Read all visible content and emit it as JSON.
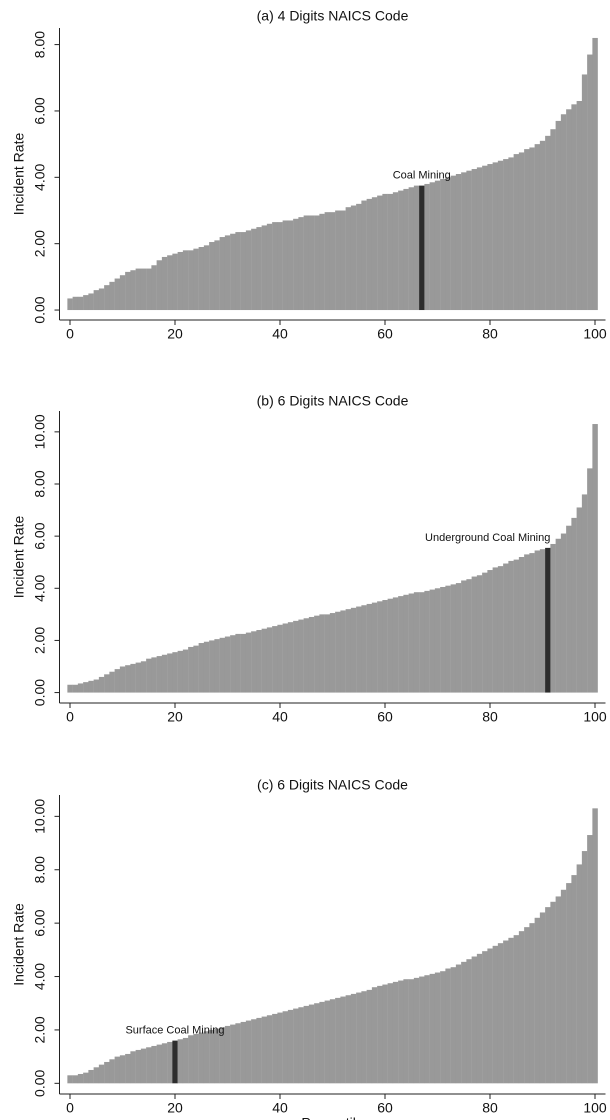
{
  "chart_data": [
    {
      "type": "bar",
      "title": "(a) 4 Digits NAICS Code",
      "ylabel": "Incident Rate",
      "color": "#999999",
      "highlight": {
        "label": "Coal Mining",
        "x": 67,
        "color": "#2d2d2d"
      },
      "x": [
        0,
        1,
        2,
        3,
        4,
        5,
        6,
        7,
        8,
        9,
        10,
        11,
        12,
        13,
        14,
        15,
        16,
        17,
        18,
        19,
        20,
        21,
        22,
        23,
        24,
        25,
        26,
        27,
        28,
        29,
        30,
        31,
        32,
        33,
        34,
        35,
        36,
        37,
        38,
        39,
        40,
        41,
        42,
        43,
        44,
        45,
        46,
        47,
        48,
        49,
        50,
        51,
        52,
        53,
        54,
        55,
        56,
        57,
        58,
        59,
        60,
        61,
        62,
        63,
        64,
        65,
        66,
        67,
        68,
        69,
        70,
        71,
        72,
        73,
        74,
        75,
        76,
        77,
        78,
        79,
        80,
        81,
        82,
        83,
        84,
        85,
        86,
        87,
        88,
        89,
        90,
        91,
        92,
        93,
        94,
        95,
        96,
        97,
        98,
        99,
        100
      ],
      "values": [
        0.35,
        0.4,
        0.4,
        0.45,
        0.5,
        0.6,
        0.65,
        0.75,
        0.85,
        0.95,
        1.05,
        1.15,
        1.2,
        1.25,
        1.25,
        1.25,
        1.35,
        1.5,
        1.6,
        1.65,
        1.7,
        1.75,
        1.8,
        1.8,
        1.85,
        1.9,
        1.95,
        2.05,
        2.1,
        2.2,
        2.25,
        2.3,
        2.35,
        2.35,
        2.4,
        2.45,
        2.5,
        2.55,
        2.6,
        2.65,
        2.65,
        2.7,
        2.7,
        2.75,
        2.8,
        2.85,
        2.85,
        2.85,
        2.9,
        2.95,
        2.95,
        3.0,
        3.0,
        3.1,
        3.15,
        3.2,
        3.3,
        3.35,
        3.4,
        3.45,
        3.5,
        3.5,
        3.55,
        3.6,
        3.65,
        3.7,
        3.75,
        3.75,
        3.8,
        3.85,
        3.9,
        3.95,
        4.0,
        4.05,
        4.1,
        4.15,
        4.2,
        4.25,
        4.3,
        4.35,
        4.4,
        4.45,
        4.5,
        4.55,
        4.6,
        4.7,
        4.75,
        4.85,
        4.9,
        5.0,
        5.1,
        5.25,
        5.45,
        5.7,
        5.9,
        6.05,
        6.2,
        6.3,
        7.1,
        7.7,
        8.2
      ],
      "xlim": [
        -2,
        102
      ],
      "xticks": [
        0,
        20,
        40,
        60,
        80,
        100
      ],
      "ylim": [
        -0.3,
        8.5
      ],
      "yticks": [
        {
          "value": 0,
          "label": "0.00"
        },
        {
          "value": 2,
          "label": "2.00"
        },
        {
          "value": 4,
          "label": "4.00"
        },
        {
          "value": 6,
          "label": "6.00"
        },
        {
          "value": 8,
          "label": "8.00"
        }
      ]
    },
    {
      "type": "bar",
      "title": "(b) 6 Digits NAICS Code",
      "ylabel": "Incident Rate",
      "color": "#999999",
      "highlight": {
        "label": "Underground Coal Mining",
        "x": 91,
        "color": "#2d2d2d"
      },
      "x": [
        0,
        1,
        2,
        3,
        4,
        5,
        6,
        7,
        8,
        9,
        10,
        11,
        12,
        13,
        14,
        15,
        16,
        17,
        18,
        19,
        20,
        21,
        22,
        23,
        24,
        25,
        26,
        27,
        28,
        29,
        30,
        31,
        32,
        33,
        34,
        35,
        36,
        37,
        38,
        39,
        40,
        41,
        42,
        43,
        44,
        45,
        46,
        47,
        48,
        49,
        50,
        51,
        52,
        53,
        54,
        55,
        56,
        57,
        58,
        59,
        60,
        61,
        62,
        63,
        64,
        65,
        66,
        67,
        68,
        69,
        70,
        71,
        72,
        73,
        74,
        75,
        76,
        77,
        78,
        79,
        80,
        81,
        82,
        83,
        84,
        85,
        86,
        87,
        88,
        89,
        90,
        91,
        92,
        93,
        94,
        95,
        96,
        97,
        98,
        99,
        100
      ],
      "values": [
        0.3,
        0.3,
        0.35,
        0.4,
        0.45,
        0.5,
        0.6,
        0.7,
        0.8,
        0.9,
        1.0,
        1.05,
        1.1,
        1.15,
        1.2,
        1.3,
        1.35,
        1.4,
        1.45,
        1.5,
        1.55,
        1.6,
        1.65,
        1.75,
        1.8,
        1.9,
        1.95,
        2.0,
        2.05,
        2.1,
        2.15,
        2.2,
        2.25,
        2.25,
        2.3,
        2.35,
        2.4,
        2.45,
        2.5,
        2.55,
        2.6,
        2.65,
        2.7,
        2.75,
        2.8,
        2.85,
        2.9,
        2.95,
        3.0,
        3.0,
        3.05,
        3.1,
        3.15,
        3.2,
        3.25,
        3.3,
        3.35,
        3.4,
        3.45,
        3.5,
        3.55,
        3.6,
        3.65,
        3.7,
        3.75,
        3.8,
        3.85,
        3.85,
        3.9,
        3.95,
        4.0,
        4.05,
        4.1,
        4.15,
        4.2,
        4.3,
        4.35,
        4.45,
        4.5,
        4.6,
        4.7,
        4.8,
        4.85,
        4.95,
        5.05,
        5.1,
        5.2,
        5.3,
        5.35,
        5.45,
        5.5,
        5.55,
        5.7,
        5.9,
        6.1,
        6.4,
        6.7,
        7.1,
        7.6,
        8.6,
        10.3
      ],
      "xlim": [
        -2,
        102
      ],
      "xticks": [
        0,
        20,
        40,
        60,
        80,
        100
      ],
      "ylim": [
        -0.4,
        10.8
      ],
      "yticks": [
        {
          "value": 0,
          "label": "0.00"
        },
        {
          "value": 2,
          "label": "2.00"
        },
        {
          "value": 4,
          "label": "4.00"
        },
        {
          "value": 6,
          "label": "6.00"
        },
        {
          "value": 8,
          "label": "8.00"
        },
        {
          "value": 10,
          "label": "10.00"
        }
      ]
    },
    {
      "type": "bar",
      "title": "(c) 6 Digits NAICS Code",
      "ylabel": "Incident Rate",
      "xlabel": "Percentile",
      "color": "#999999",
      "highlight": {
        "label": "Surface Coal Mining",
        "x": 20,
        "color": "#2d2d2d"
      },
      "x": [
        0,
        1,
        2,
        3,
        4,
        5,
        6,
        7,
        8,
        9,
        10,
        11,
        12,
        13,
        14,
        15,
        16,
        17,
        18,
        19,
        20,
        21,
        22,
        23,
        24,
        25,
        26,
        27,
        28,
        29,
        30,
        31,
        32,
        33,
        34,
        35,
        36,
        37,
        38,
        39,
        40,
        41,
        42,
        43,
        44,
        45,
        46,
        47,
        48,
        49,
        50,
        51,
        52,
        53,
        54,
        55,
        56,
        57,
        58,
        59,
        60,
        61,
        62,
        63,
        64,
        65,
        66,
        67,
        68,
        69,
        70,
        71,
        72,
        73,
        74,
        75,
        76,
        77,
        78,
        79,
        80,
        81,
        82,
        83,
        84,
        85,
        86,
        87,
        88,
        89,
        90,
        91,
        92,
        93,
        94,
        95,
        96,
        97,
        98,
        99,
        100
      ],
      "values": [
        0.3,
        0.3,
        0.35,
        0.4,
        0.5,
        0.6,
        0.7,
        0.8,
        0.9,
        1.0,
        1.05,
        1.1,
        1.2,
        1.25,
        1.3,
        1.35,
        1.4,
        1.45,
        1.5,
        1.55,
        1.6,
        1.65,
        1.7,
        1.8,
        1.85,
        1.9,
        1.95,
        2.0,
        2.05,
        2.1,
        2.15,
        2.2,
        2.25,
        2.3,
        2.35,
        2.4,
        2.45,
        2.5,
        2.55,
        2.6,
        2.65,
        2.7,
        2.75,
        2.8,
        2.85,
        2.9,
        2.95,
        3.0,
        3.05,
        3.1,
        3.15,
        3.2,
        3.25,
        3.3,
        3.35,
        3.4,
        3.45,
        3.5,
        3.6,
        3.65,
        3.7,
        3.75,
        3.8,
        3.85,
        3.9,
        3.9,
        3.95,
        4.0,
        4.05,
        4.1,
        4.15,
        4.2,
        4.3,
        4.35,
        4.45,
        4.55,
        4.65,
        4.75,
        4.85,
        4.95,
        5.05,
        5.15,
        5.25,
        5.35,
        5.45,
        5.55,
        5.7,
        5.85,
        6.0,
        6.2,
        6.4,
        6.6,
        6.8,
        7.0,
        7.25,
        7.5,
        7.8,
        8.2,
        8.7,
        9.3,
        10.3
      ],
      "xlim": [
        -2,
        102
      ],
      "xticks": [
        0,
        20,
        40,
        60,
        80,
        100
      ],
      "ylim": [
        -0.4,
        10.8
      ],
      "yticks": [
        {
          "value": 0,
          "label": "0.00"
        },
        {
          "value": 2,
          "label": "2.00"
        },
        {
          "value": 4,
          "label": "4.00"
        },
        {
          "value": 6,
          "label": "6.00"
        },
        {
          "value": 8,
          "label": "8.00"
        },
        {
          "value": 10,
          "label": "10.00"
        }
      ]
    }
  ]
}
